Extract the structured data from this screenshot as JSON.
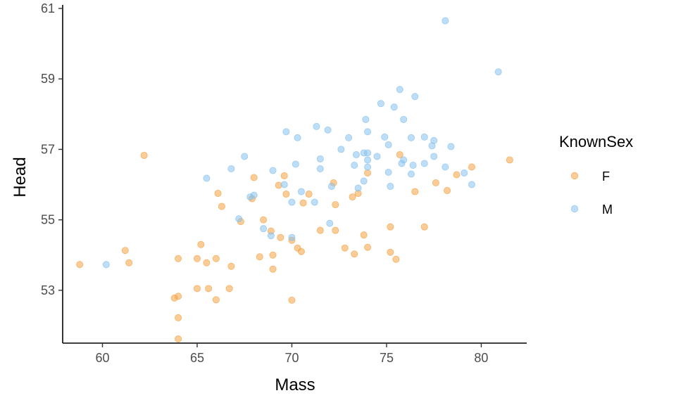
{
  "chart_data": {
    "type": "scatter",
    "xlabel": "Mass",
    "ylabel": "Head",
    "xlim": [
      57.9,
      82.4
    ],
    "ylim": [
      51.5,
      61.1
    ],
    "xticks": [
      60,
      65,
      70,
      75,
      80
    ],
    "yticks": [
      53,
      55,
      57,
      59,
      61
    ],
    "grid": false,
    "legend": {
      "title": "KnownSex",
      "placement": "right"
    },
    "colors": {
      "F": "#f5a243",
      "M": "#87c2ee"
    },
    "series": [
      {
        "name": "F",
        "color": "#f5a243",
        "points": [
          [
            58.8,
            53.73
          ],
          [
            61.2,
            54.13
          ],
          [
            61.4,
            53.78
          ],
          [
            62.2,
            56.83
          ],
          [
            63.8,
            52.78
          ],
          [
            64.0,
            53.9
          ],
          [
            64.0,
            52.83
          ],
          [
            64.0,
            52.22
          ],
          [
            64.0,
            51.62
          ],
          [
            65.0,
            53.9
          ],
          [
            65.0,
            53.05
          ],
          [
            65.2,
            54.3
          ],
          [
            65.5,
            53.78
          ],
          [
            65.6,
            53.05
          ],
          [
            66.0,
            53.9
          ],
          [
            66.0,
            52.73
          ],
          [
            66.1,
            55.75
          ],
          [
            66.3,
            55.38
          ],
          [
            66.7,
            53.05
          ],
          [
            66.8,
            53.68
          ],
          [
            67.3,
            54.95
          ],
          [
            68.0,
            56.2
          ],
          [
            67.9,
            55.6
          ],
          [
            68.3,
            53.95
          ],
          [
            68.5,
            55.0
          ],
          [
            68.9,
            54.68
          ],
          [
            69.0,
            54.0
          ],
          [
            69.0,
            53.6
          ],
          [
            69.3,
            55.98
          ],
          [
            69.4,
            54.5
          ],
          [
            69.6,
            56.25
          ],
          [
            69.7,
            55.73
          ],
          [
            70.0,
            54.42
          ],
          [
            70.0,
            52.72
          ],
          [
            70.3,
            54.2
          ],
          [
            70.5,
            54.1
          ],
          [
            70.6,
            55.48
          ],
          [
            70.9,
            55.73
          ],
          [
            71.5,
            54.7
          ],
          [
            72.2,
            56.05
          ],
          [
            72.3,
            55.43
          ],
          [
            72.3,
            54.7
          ],
          [
            72.8,
            54.2
          ],
          [
            73.2,
            55.65
          ],
          [
            73.3,
            54.03
          ],
          [
            73.5,
            55.75
          ],
          [
            73.8,
            54.57
          ],
          [
            74.0,
            56.33
          ],
          [
            74.0,
            54.22
          ],
          [
            75.2,
            54.8
          ],
          [
            75.2,
            54.08
          ],
          [
            75.5,
            53.88
          ],
          [
            75.7,
            56.85
          ],
          [
            76.5,
            55.8
          ],
          [
            77.0,
            54.8
          ],
          [
            77.6,
            56.05
          ],
          [
            78.2,
            55.83
          ],
          [
            78.7,
            56.28
          ],
          [
            79.5,
            56.5
          ],
          [
            81.5,
            56.7
          ]
        ]
      },
      {
        "name": "M",
        "color": "#87c2ee",
        "points": [
          [
            60.2,
            53.73
          ],
          [
            65.5,
            56.18
          ],
          [
            66.8,
            56.45
          ],
          [
            67.2,
            55.03
          ],
          [
            67.5,
            56.8
          ],
          [
            67.8,
            55.65
          ],
          [
            68.0,
            55.7
          ],
          [
            68.5,
            54.75
          ],
          [
            68.9,
            54.55
          ],
          [
            69.0,
            56.4
          ],
          [
            69.6,
            56.0
          ],
          [
            69.7,
            57.5
          ],
          [
            70.0,
            55.5
          ],
          [
            70.0,
            54.5
          ],
          [
            70.2,
            56.58
          ],
          [
            70.3,
            57.33
          ],
          [
            70.5,
            55.8
          ],
          [
            71.2,
            55.5
          ],
          [
            71.3,
            57.65
          ],
          [
            71.5,
            56.45
          ],
          [
            71.5,
            56.73
          ],
          [
            71.9,
            57.55
          ],
          [
            72.0,
            54.9
          ],
          [
            72.1,
            55.95
          ],
          [
            72.6,
            57.0
          ],
          [
            73.0,
            57.33
          ],
          [
            73.3,
            56.55
          ],
          [
            73.4,
            56.85
          ],
          [
            73.5,
            55.9
          ],
          [
            73.8,
            56.9
          ],
          [
            73.8,
            56.1
          ],
          [
            73.9,
            57.85
          ],
          [
            74.0,
            57.5
          ],
          [
            74.0,
            56.9
          ],
          [
            74.0,
            56.7
          ],
          [
            74.0,
            56.5
          ],
          [
            74.5,
            56.8
          ],
          [
            74.7,
            58.3
          ],
          [
            74.9,
            57.35
          ],
          [
            75.1,
            57.13
          ],
          [
            75.1,
            56.35
          ],
          [
            75.2,
            55.95
          ],
          [
            75.4,
            58.2
          ],
          [
            75.7,
            58.7
          ],
          [
            75.8,
            56.6
          ],
          [
            75.9,
            57.85
          ],
          [
            75.9,
            56.7
          ],
          [
            76.3,
            56.3
          ],
          [
            76.3,
            57.33
          ],
          [
            76.4,
            56.55
          ],
          [
            76.5,
            58.5
          ],
          [
            77.0,
            56.6
          ],
          [
            77.0,
            57.35
          ],
          [
            77.4,
            57.1
          ],
          [
            77.5,
            56.8
          ],
          [
            77.5,
            57.25
          ],
          [
            78.1,
            60.65
          ],
          [
            78.1,
            56.5
          ],
          [
            78.4,
            57.08
          ],
          [
            79.1,
            56.33
          ],
          [
            79.5,
            56.0
          ],
          [
            80.9,
            59.2
          ]
        ]
      }
    ]
  }
}
